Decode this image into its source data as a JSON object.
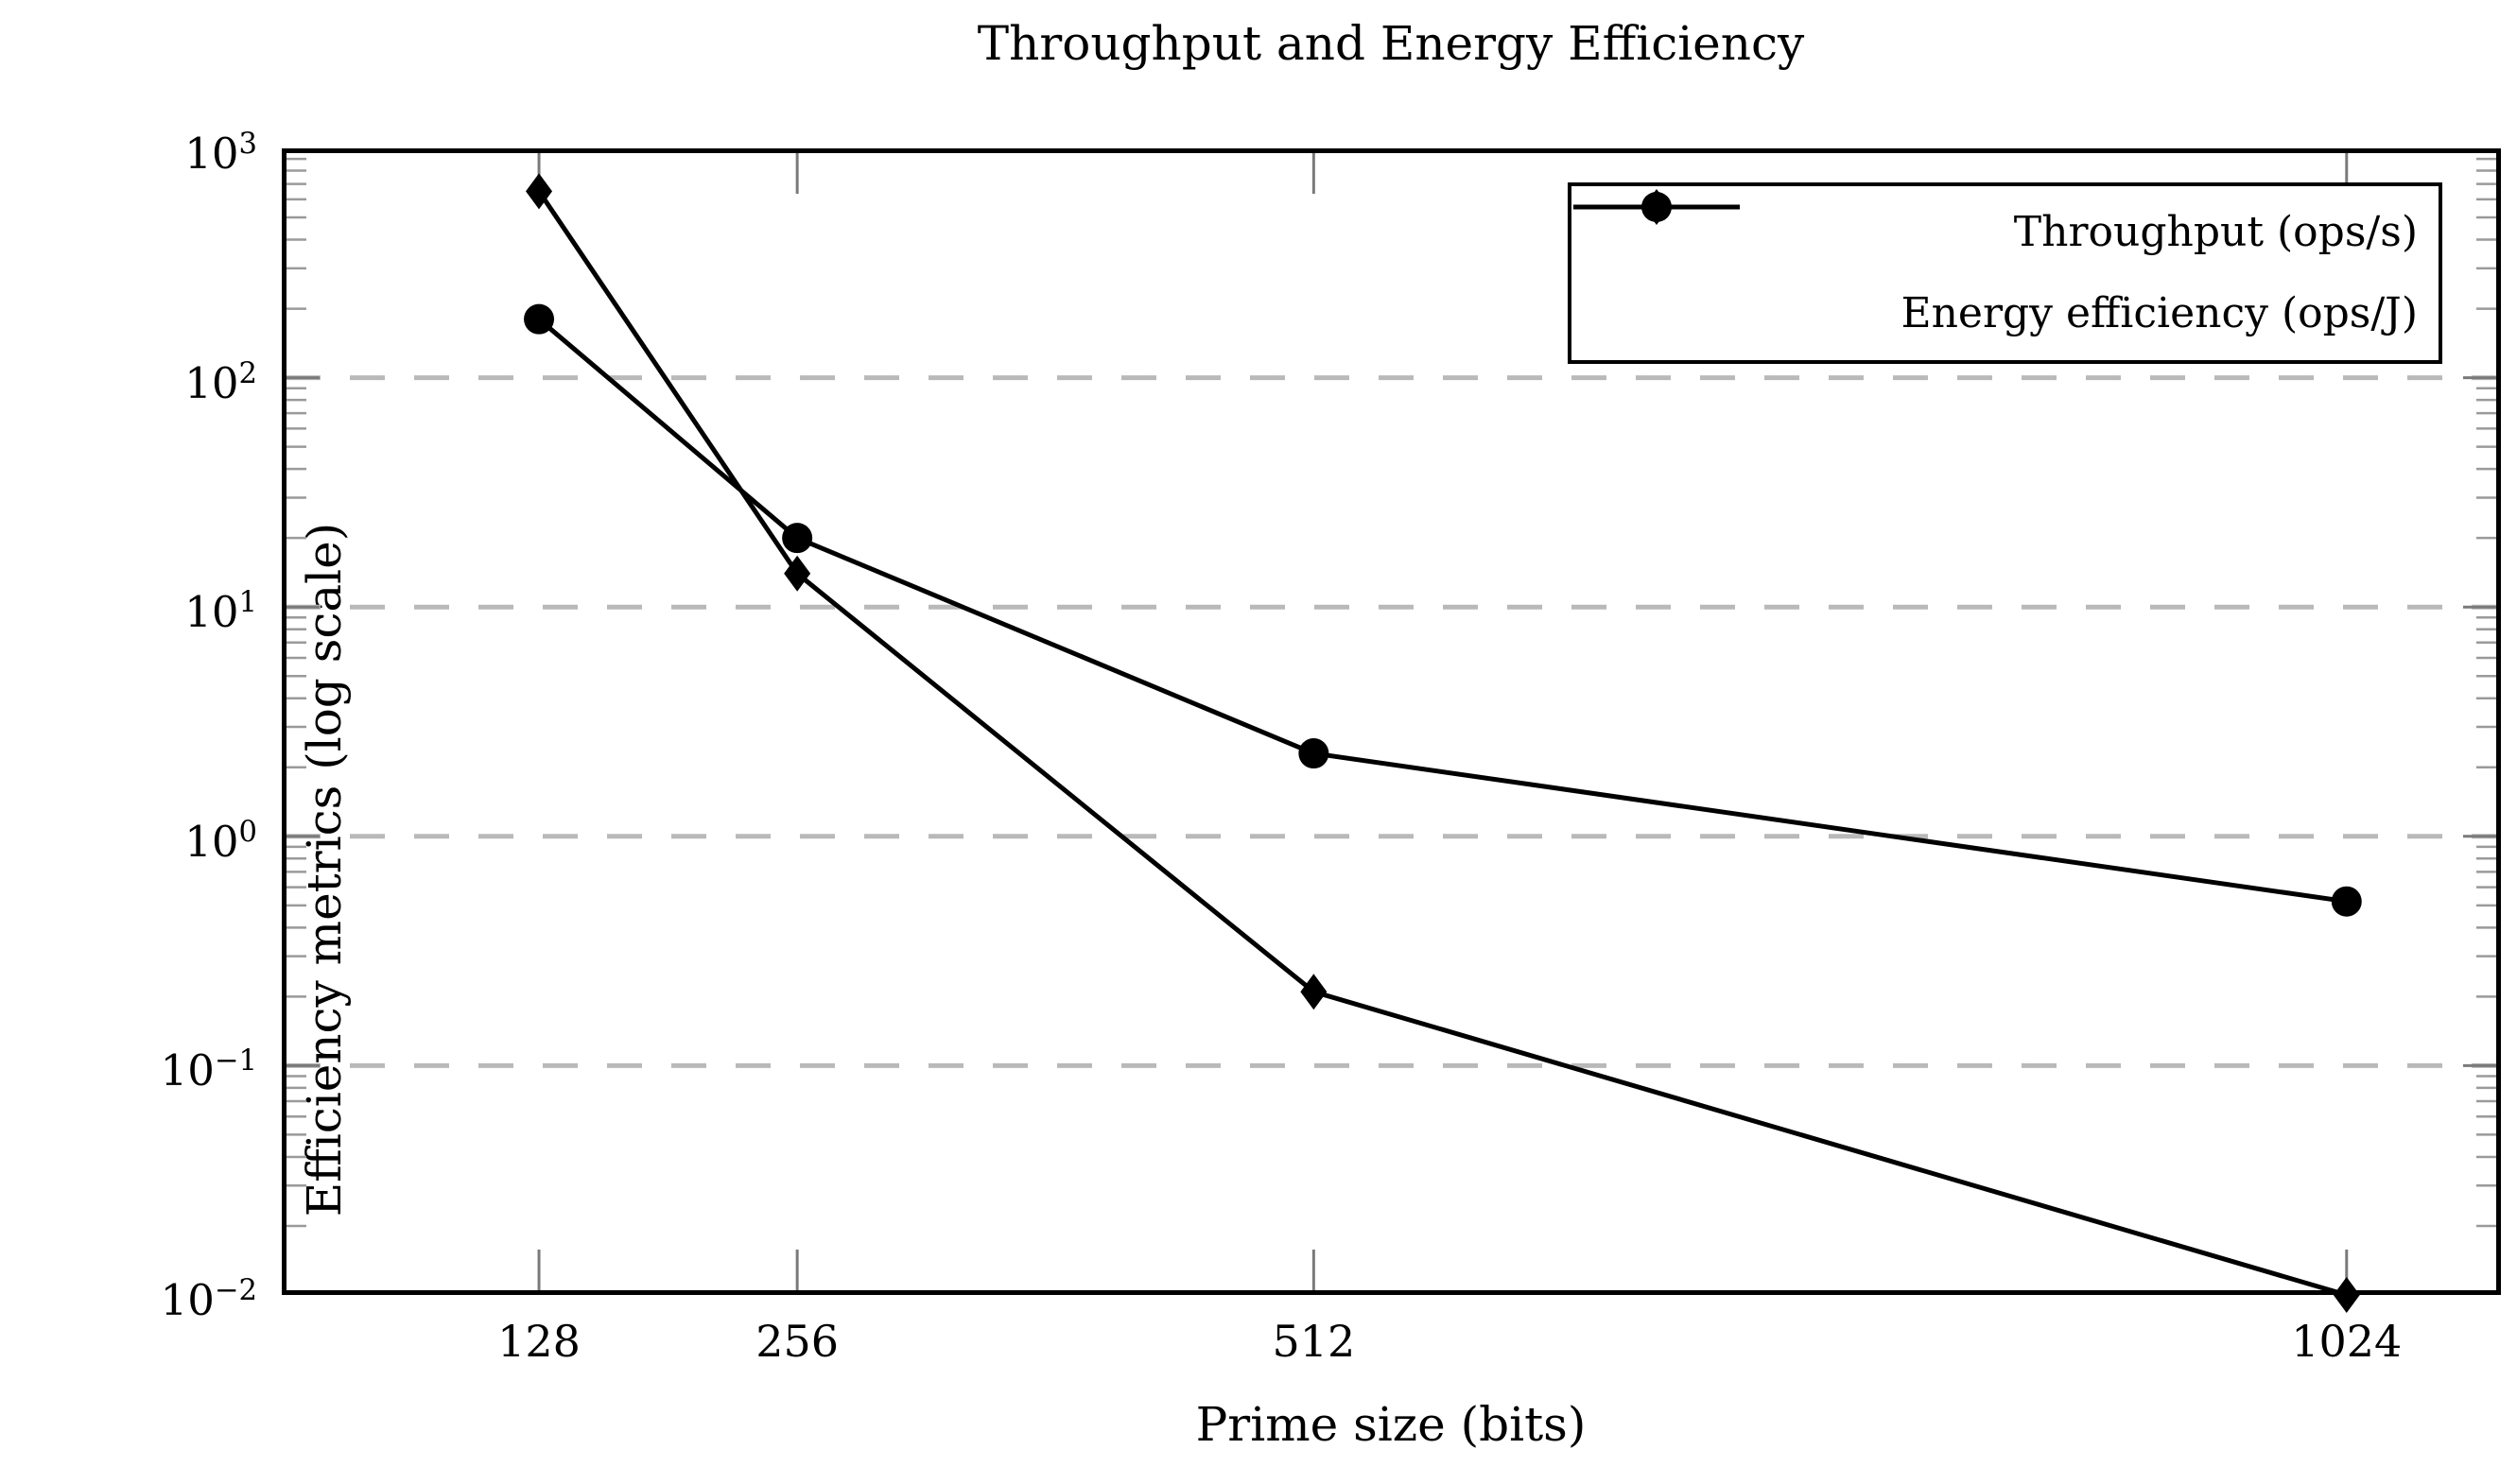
{
  "title": "Throughput and Energy Efficiency",
  "axes": {
    "x": {
      "label": "Prime size (bits)",
      "scale": "linear",
      "range": [
        0.5,
        1100.5
      ],
      "tick_values": [
        128,
        256,
        512,
        1024
      ]
    },
    "y": {
      "label": "Efficiency metrics (log scale)",
      "scale": "log",
      "range": [
        0.01,
        1000
      ],
      "tick_exponents": [
        3,
        2,
        1,
        0,
        -1,
        -2
      ],
      "gridline_exponents": [
        2,
        1,
        0,
        -1
      ]
    }
  },
  "legend": {
    "position": "top-right",
    "entries": [
      {
        "label": "Throughput (ops/s)",
        "marker": "circle"
      },
      {
        "label": "Energy efficiency (ops/J)",
        "marker": "diamond"
      }
    ]
  },
  "chart_data": {
    "type": "line",
    "title": "Throughput and Energy Efficiency",
    "xlabel": "Prime size (bits)",
    "ylabel": "Efficiency metrics (log scale)",
    "x": [
      128,
      256,
      512,
      1024
    ],
    "series": [
      {
        "name": "Throughput (ops/s)",
        "marker": "circle",
        "values": [
          180,
          20,
          2.3,
          0.52
        ]
      },
      {
        "name": "Energy efficiency (ops/J)",
        "marker": "diamond",
        "values": [
          650,
          14,
          0.21,
          0.01
        ]
      }
    ],
    "xlim": [
      0.5,
      1100.5
    ],
    "ylim": [
      0.01,
      1000
    ],
    "yscale": "log",
    "grid": "major-y, dashed",
    "legend_position": "top-right"
  },
  "colors": {
    "series": "#000000",
    "grid": "#b9b9b9",
    "minor_tick": "#9a9a9a",
    "major_tick": "#7a7a7a",
    "frame": "#000000",
    "background": "#ffffff"
  }
}
